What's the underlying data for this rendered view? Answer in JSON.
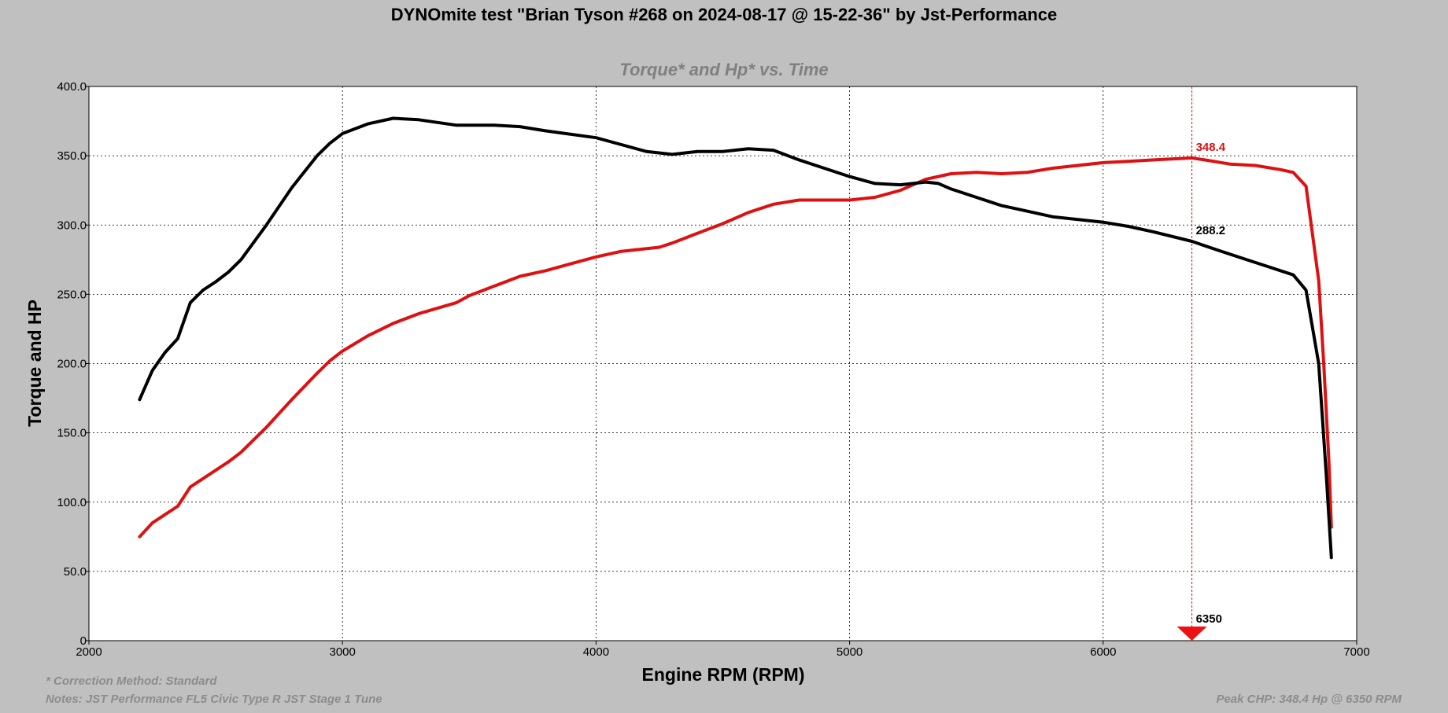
{
  "colors": {
    "background": "#c0c0c0",
    "plot_background": "#ffffff",
    "hp_series": "#dd1111",
    "torque_series": "#000000",
    "subtitle": "#808080",
    "footnote": "#8c8c8c"
  },
  "footer": {
    "correction": "* Correction Method: Standard",
    "notes": "Notes: JST Performance FL5 Civic Type R JST Stage 1 Tune",
    "peak": "Peak CHP: 348.4 Hp @ 6350 RPM"
  },
  "chart_data": {
    "type": "line",
    "title": "DYNOmite test \"Brian Tyson #268 on 2024-08-17 @ 15-22-36\" by Jst-Performance",
    "subtitle": "Torque* and Hp* vs. Time",
    "xlabel": "Engine RPM (RPM)",
    "ylabel": "Torque and HP",
    "xlim": [
      2000,
      7000
    ],
    "ylim": [
      0,
      400
    ],
    "x_ticks": [
      2000,
      3000,
      4000,
      5000,
      6000,
      7000
    ],
    "x_tick_labels": [
      "2000",
      "3000",
      "4000",
      "5000",
      "6000",
      "7000"
    ],
    "y_ticks": [
      0,
      50,
      100,
      150,
      200,
      250,
      300,
      350,
      400
    ],
    "y_tick_labels": [
      "0",
      "50.0",
      "100.0",
      "150.0",
      "200.0",
      "250.0",
      "300.0",
      "350.0",
      "400.0"
    ],
    "grid": true,
    "series": [
      {
        "key": "hp",
        "color": "#dd1111",
        "points": [
          [
            2200,
            75
          ],
          [
            2250,
            85
          ],
          [
            2300,
            91
          ],
          [
            2350,
            97
          ],
          [
            2400,
            111
          ],
          [
            2450,
            117
          ],
          [
            2500,
            123
          ],
          [
            2550,
            129
          ],
          [
            2600,
            136
          ],
          [
            2700,
            154
          ],
          [
            2800,
            174
          ],
          [
            2900,
            193
          ],
          [
            2950,
            202
          ],
          [
            3000,
            209
          ],
          [
            3100,
            220
          ],
          [
            3200,
            229
          ],
          [
            3300,
            236
          ],
          [
            3450,
            244
          ],
          [
            3500,
            249
          ],
          [
            3600,
            256
          ],
          [
            3700,
            263
          ],
          [
            3800,
            267
          ],
          [
            3900,
            272
          ],
          [
            4000,
            277
          ],
          [
            4100,
            281
          ],
          [
            4250,
            284
          ],
          [
            4300,
            287
          ],
          [
            4400,
            294
          ],
          [
            4500,
            301
          ],
          [
            4600,
            309
          ],
          [
            4700,
            315
          ],
          [
            4800,
            318
          ],
          [
            5000,
            318
          ],
          [
            5100,
            320
          ],
          [
            5200,
            325
          ],
          [
            5300,
            333
          ],
          [
            5400,
            337
          ],
          [
            5500,
            338
          ],
          [
            5600,
            337
          ],
          [
            5700,
            338
          ],
          [
            5800,
            341
          ],
          [
            6000,
            345
          ],
          [
            6100,
            346
          ],
          [
            6200,
            347
          ],
          [
            6350,
            348.4
          ],
          [
            6400,
            347
          ],
          [
            6500,
            344
          ],
          [
            6600,
            343
          ],
          [
            6700,
            340
          ],
          [
            6750,
            338
          ],
          [
            6800,
            328
          ],
          [
            6850,
            260
          ],
          [
            6870,
            200
          ],
          [
            6890,
            130
          ],
          [
            6900,
            82
          ]
        ]
      },
      {
        "key": "torque",
        "color": "#000000",
        "points": [
          [
            2200,
            174
          ],
          [
            2250,
            195
          ],
          [
            2300,
            208
          ],
          [
            2350,
            218
          ],
          [
            2400,
            244
          ],
          [
            2450,
            253
          ],
          [
            2500,
            259
          ],
          [
            2550,
            266
          ],
          [
            2600,
            275
          ],
          [
            2700,
            300
          ],
          [
            2800,
            327
          ],
          [
            2900,
            350
          ],
          [
            2950,
            359
          ],
          [
            3000,
            366
          ],
          [
            3100,
            373
          ],
          [
            3200,
            377
          ],
          [
            3300,
            376
          ],
          [
            3450,
            372
          ],
          [
            3600,
            372
          ],
          [
            3700,
            371
          ],
          [
            3800,
            368
          ],
          [
            4000,
            363
          ],
          [
            4100,
            358
          ],
          [
            4200,
            353
          ],
          [
            4300,
            351
          ],
          [
            4400,
            353
          ],
          [
            4500,
            353
          ],
          [
            4600,
            355
          ],
          [
            4700,
            354
          ],
          [
            4800,
            347
          ],
          [
            4900,
            341
          ],
          [
            5000,
            335
          ],
          [
            5100,
            330
          ],
          [
            5200,
            329
          ],
          [
            5300,
            331
          ],
          [
            5350,
            330
          ],
          [
            5400,
            326
          ],
          [
            5500,
            320
          ],
          [
            5600,
            314
          ],
          [
            5700,
            310
          ],
          [
            5800,
            306
          ],
          [
            6000,
            302
          ],
          [
            6100,
            299
          ],
          [
            6200,
            295
          ],
          [
            6350,
            288.2
          ],
          [
            6450,
            282
          ],
          [
            6550,
            276
          ],
          [
            6650,
            270
          ],
          [
            6750,
            264
          ],
          [
            6800,
            253
          ],
          [
            6850,
            200
          ],
          [
            6880,
            120
          ],
          [
            6900,
            60
          ]
        ]
      }
    ],
    "annotations": [
      {
        "key": "hp_peak",
        "text": "348.4",
        "x": 6350,
        "y": 348.4,
        "color": "#dd1111"
      },
      {
        "key": "torque_at_cursor",
        "text": "288.2",
        "x": 6350,
        "y": 288.2,
        "color": "#000000"
      },
      {
        "key": "cursor_rpm",
        "text": "6350",
        "x": 6350,
        "color": "#000000"
      }
    ],
    "cursor": {
      "x": 6350,
      "color": "#dd1111"
    }
  }
}
